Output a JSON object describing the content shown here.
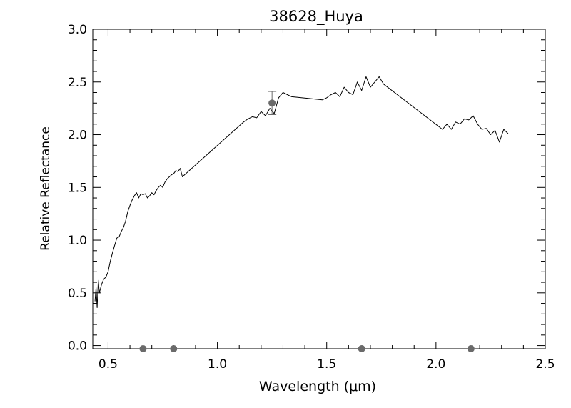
{
  "chart_data": {
    "type": "line",
    "title": "38628_Huya",
    "xlabel": "Wavelength (μm)",
    "ylabel": "Relative Reflectance",
    "xlim": [
      0.43,
      2.5
    ],
    "ylim": [
      -0.03,
      3.0
    ],
    "x_ticks": [
      0.5,
      1.0,
      1.5,
      2.0,
      2.5
    ],
    "x_tick_labels": [
      "0.5",
      "1.0",
      "1.5",
      "2.0",
      "2.5"
    ],
    "y_ticks": [
      0.0,
      0.5,
      1.0,
      1.5,
      2.0,
      2.5,
      3.0
    ],
    "y_tick_labels": [
      "0.0",
      "0.5",
      "1.0",
      "1.5",
      "2.0",
      "2.5",
      "3.0"
    ],
    "x_minor_step": 0.1,
    "y_minor_step": 0.1,
    "grid": false,
    "series": [
      {
        "style": "line",
        "color": "#000000",
        "x": [
          0.44,
          0.445,
          0.45,
          0.455,
          0.46,
          0.47,
          0.48,
          0.49,
          0.5,
          0.51,
          0.52,
          0.53,
          0.54,
          0.55,
          0.56,
          0.57,
          0.58,
          0.59,
          0.6,
          0.61,
          0.62,
          0.63,
          0.64,
          0.65,
          0.66,
          0.67,
          0.68,
          0.69,
          0.7,
          0.71,
          0.72,
          0.73,
          0.74,
          0.75,
          0.76,
          0.77,
          0.78,
          0.79,
          0.8,
          0.81,
          0.82,
          0.83,
          0.84,
          0.85,
          1.12,
          1.14,
          1.16,
          1.18,
          1.2,
          1.22,
          1.24,
          1.26,
          1.28,
          1.3,
          1.32,
          1.34,
          1.48,
          1.5,
          1.52,
          1.54,
          1.56,
          1.58,
          1.6,
          1.62,
          1.64,
          1.66,
          1.68,
          1.7,
          1.72,
          1.74,
          1.76,
          2.03,
          2.05,
          2.07,
          2.09,
          2.11,
          2.13,
          2.15,
          2.17,
          2.19,
          2.21,
          2.23,
          2.25,
          2.27,
          2.29,
          2.31,
          2.33
        ],
        "y": [
          0.42,
          0.55,
          0.36,
          0.62,
          0.5,
          0.58,
          0.63,
          0.65,
          0.7,
          0.8,
          0.88,
          0.95,
          1.02,
          1.03,
          1.08,
          1.12,
          1.18,
          1.27,
          1.33,
          1.38,
          1.42,
          1.45,
          1.4,
          1.44,
          1.43,
          1.44,
          1.4,
          1.42,
          1.45,
          1.43,
          1.47,
          1.5,
          1.52,
          1.5,
          1.55,
          1.58,
          1.6,
          1.62,
          1.63,
          1.66,
          1.65,
          1.68,
          1.6,
          1.62,
          2.12,
          2.15,
          2.17,
          2.16,
          2.22,
          2.18,
          2.25,
          2.2,
          2.35,
          2.4,
          2.38,
          2.36,
          2.33,
          2.35,
          2.38,
          2.4,
          2.36,
          2.45,
          2.4,
          2.38,
          2.5,
          2.42,
          2.55,
          2.45,
          2.5,
          2.55,
          2.48,
          2.05,
          2.1,
          2.05,
          2.12,
          2.1,
          2.15,
          2.14,
          2.18,
          2.1,
          2.05,
          2.06,
          2.0,
          2.04,
          1.93,
          2.05,
          2.01
        ]
      },
      {
        "style": "markers",
        "color": "#6a6a6a",
        "x": [
          0.66,
          0.8,
          1.66,
          2.16
        ],
        "y": [
          -0.03,
          -0.03,
          -0.03,
          -0.03
        ]
      },
      {
        "style": "markers-errorbar",
        "color": "#6a6a6a",
        "x": [
          1.25
        ],
        "y": [
          2.3
        ],
        "yerr": [
          0.11
        ]
      }
    ]
  }
}
